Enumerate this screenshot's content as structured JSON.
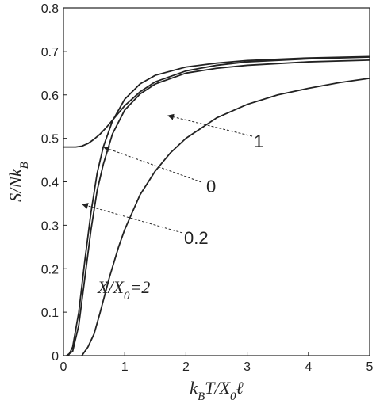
{
  "chart_data": {
    "type": "line",
    "xlabel": [
      "k",
      "B",
      "T/X",
      "0",
      "ℓ"
    ],
    "ylabel": [
      "S/Nk",
      "B"
    ],
    "xlim": [
      0,
      5
    ],
    "xticks": [
      0,
      1,
      2,
      3,
      4,
      5
    ],
    "ylim": [
      0,
      0.8
    ],
    "yticks": [
      0,
      0.1,
      0.2,
      0.3,
      0.4,
      0.5,
      0.6,
      0.7,
      0.8
    ],
    "series": [
      {
        "color": "#222222",
        "x": [
          0,
          0.2,
          0.3,
          0.4,
          0.5,
          0.6,
          0.7,
          0.85,
          1,
          1.25,
          1.5,
          2,
          2.5,
          3,
          4,
          5
        ],
        "values": [
          0.48,
          0.48,
          0.482,
          0.488,
          0.498,
          0.51,
          0.525,
          0.55,
          0.575,
          0.607,
          0.63,
          0.655,
          0.668,
          0.676,
          0.683,
          0.687
        ]
      },
      {
        "color": "#222222",
        "x": [
          0.08,
          0.15,
          0.25,
          0.35,
          0.45,
          0.55,
          0.65,
          0.8,
          1,
          1.25,
          1.5,
          2,
          2.5,
          3,
          4,
          5
        ],
        "values": [
          0,
          0.02,
          0.1,
          0.22,
          0.33,
          0.42,
          0.48,
          0.54,
          0.59,
          0.625,
          0.645,
          0.664,
          0.673,
          0.679,
          0.685,
          0.688
        ]
      },
      {
        "color": "#222222",
        "x": [
          0.05,
          0.15,
          0.25,
          0.35,
          0.45,
          0.55,
          0.65,
          0.8,
          1,
          1.25,
          1.5,
          2,
          2.5,
          3,
          4,
          5
        ],
        "values": [
          0,
          0.01,
          0.07,
          0.18,
          0.29,
          0.38,
          0.44,
          0.51,
          0.565,
          0.602,
          0.625,
          0.65,
          0.661,
          0.668,
          0.676,
          0.68
        ]
      },
      {
        "color": "#222222",
        "x": [
          0.3,
          0.4,
          0.5,
          0.6,
          0.75,
          0.9,
          1,
          1.25,
          1.5,
          1.75,
          2,
          2.5,
          3,
          3.5,
          4,
          4.5,
          5
        ],
        "values": [
          0,
          0.02,
          0.05,
          0.1,
          0.18,
          0.25,
          0.29,
          0.37,
          0.425,
          0.467,
          0.5,
          0.547,
          0.578,
          0.6,
          0.615,
          0.628,
          0.638
        ]
      }
    ],
    "annotations": [
      [
        "1"
      ],
      [
        "0"
      ],
      [
        "0.2"
      ],
      [
        "X/X",
        "0",
        "=2"
      ]
    ]
  }
}
